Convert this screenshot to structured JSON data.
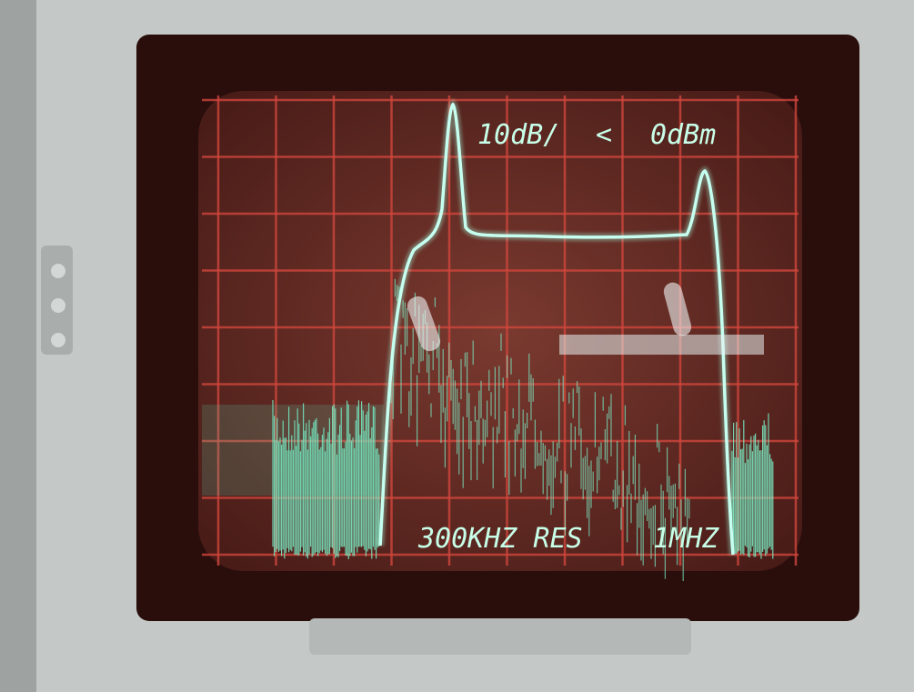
{
  "screen": {
    "scale": "10dB/",
    "marker": "<",
    "reference": "0dBm",
    "resolution": "300KHZ RES",
    "span": "1MHZ"
  }
}
